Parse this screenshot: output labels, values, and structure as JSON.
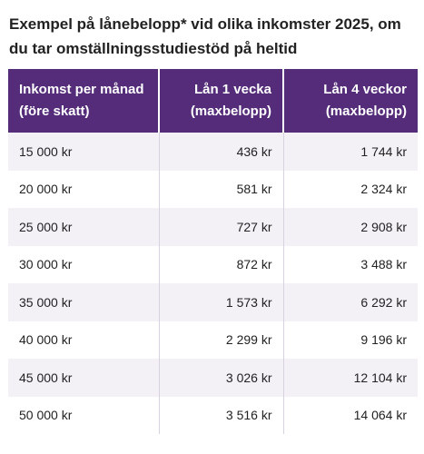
{
  "caption": {
    "line1": "Exempel på lånebelopp* vid olika inkomster 2025, om",
    "line2": "du tar omställningsstudiestöd på heltid"
  },
  "table": {
    "headers": [
      {
        "line1": "Inkomst per månad",
        "line2": "(före skatt)"
      },
      {
        "line1": "Lån 1 vecka",
        "line2": "(maxbelopp)"
      },
      {
        "line1": "Lån 4 veckor",
        "line2": "(maxbelopp)"
      }
    ],
    "rows": [
      [
        "15 000 kr",
        "436 kr",
        "1 744 kr"
      ],
      [
        "20 000 kr",
        "581 kr",
        "2 324 kr"
      ],
      [
        "25 000 kr",
        "727 kr",
        "2 908 kr"
      ],
      [
        "30 000 kr",
        "872 kr",
        "3 488 kr"
      ],
      [
        "35 000 kr",
        "1 573 kr",
        "6 292 kr"
      ],
      [
        "40 000 kr",
        "2 299 kr",
        "9 196 kr"
      ],
      [
        "45 000 kr",
        "3 026 kr",
        "12 104 kr"
      ],
      [
        "50 000 kr",
        "3 516 kr",
        "14 064 kr"
      ]
    ]
  },
  "colors": {
    "header_bg": "#542c7a",
    "header_text": "#ffffff",
    "row_alt_bg": "#f3f0f6"
  }
}
